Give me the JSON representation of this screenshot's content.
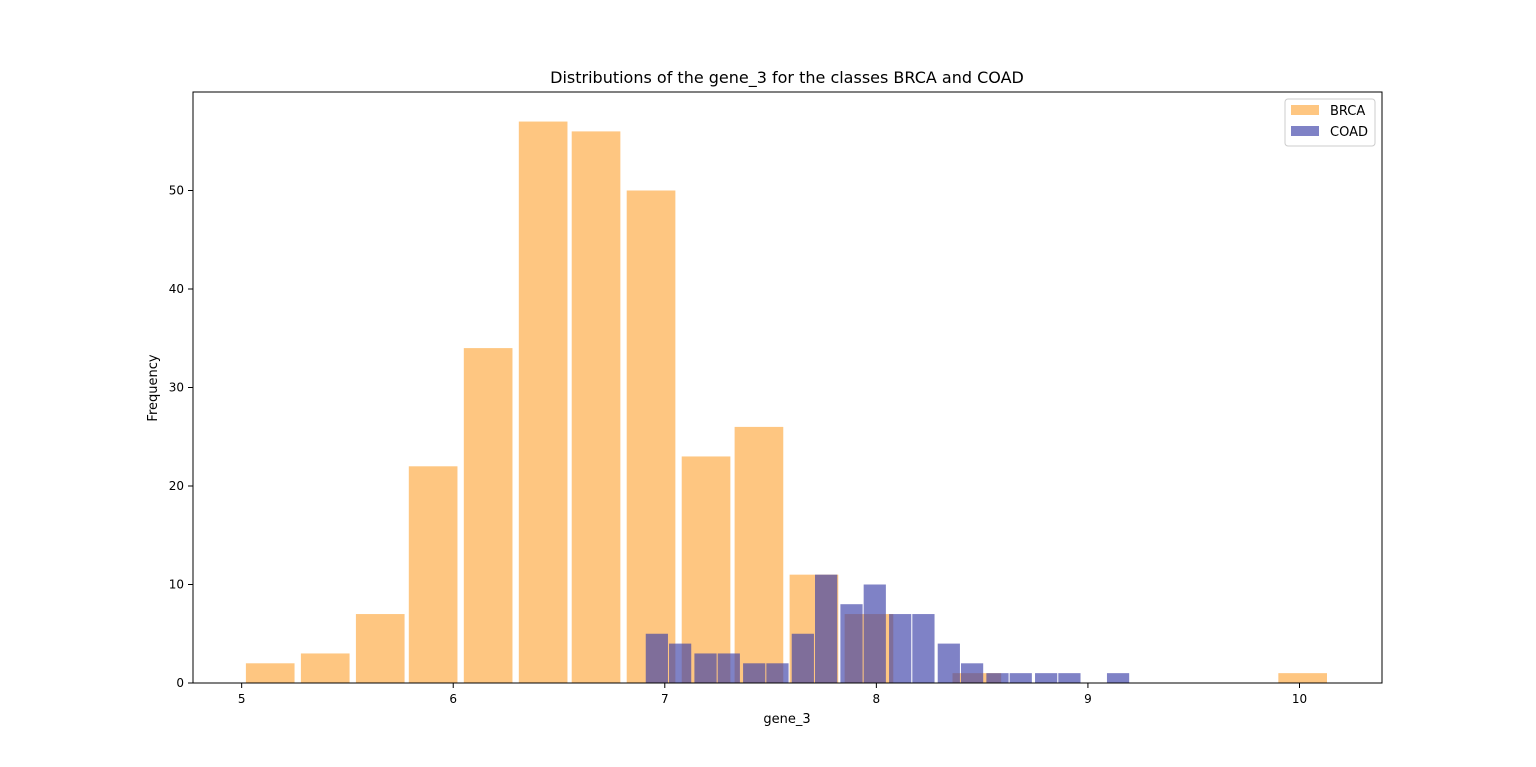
{
  "chart_data": {
    "type": "bar",
    "title": "Distributions of the gene_3 for the classes BRCA and COAD",
    "xlabel": "gene_3",
    "ylabel": "Frequency",
    "xlim": [
      4.77,
      10.39
    ],
    "ylim": [
      0,
      60
    ],
    "xticks": [
      5,
      6,
      7,
      8,
      9,
      10
    ],
    "yticks": [
      0,
      10,
      20,
      30,
      40,
      50
    ],
    "grid": false,
    "legend_position": "top-right",
    "series": [
      {
        "name": "BRCA",
        "color": "#fdae4b",
        "opacity": 0.7,
        "bin_width": 0.23,
        "bins": [
          {
            "x0": 5.02,
            "value": 2
          },
          {
            "x0": 5.28,
            "value": 3
          },
          {
            "x0": 5.54,
            "value": 7
          },
          {
            "x0": 5.79,
            "value": 22
          },
          {
            "x0": 6.05,
            "value": 34
          },
          {
            "x0": 6.31,
            "value": 57
          },
          {
            "x0": 6.56,
            "value": 56
          },
          {
            "x0": 6.82,
            "value": 50
          },
          {
            "x0": 7.08,
            "value": 23
          },
          {
            "x0": 7.33,
            "value": 26
          },
          {
            "x0": 7.59,
            "value": 11
          },
          {
            "x0": 7.85,
            "value": 7
          },
          {
            "x0": 8.36,
            "value": 1
          },
          {
            "x0": 9.9,
            "value": 1
          }
        ]
      },
      {
        "name": "COAD",
        "color": "#3b3fa8",
        "opacity": 0.65,
        "bin_width": 0.105,
        "bins": [
          {
            "x0": 6.91,
            "value": 5
          },
          {
            "x0": 7.02,
            "value": 4
          },
          {
            "x0": 7.14,
            "value": 3
          },
          {
            "x0": 7.25,
            "value": 3
          },
          {
            "x0": 7.37,
            "value": 2
          },
          {
            "x0": 7.48,
            "value": 2
          },
          {
            "x0": 7.6,
            "value": 5
          },
          {
            "x0": 7.71,
            "value": 11
          },
          {
            "x0": 7.83,
            "value": 8
          },
          {
            "x0": 7.94,
            "value": 10
          },
          {
            "x0": 8.06,
            "value": 7
          },
          {
            "x0": 8.17,
            "value": 7
          },
          {
            "x0": 8.29,
            "value": 4
          },
          {
            "x0": 8.4,
            "value": 2
          },
          {
            "x0": 8.52,
            "value": 1
          },
          {
            "x0": 8.63,
            "value": 1
          },
          {
            "x0": 8.75,
            "value": 1
          },
          {
            "x0": 8.86,
            "value": 1
          },
          {
            "x0": 9.09,
            "value": 1
          }
        ]
      }
    ]
  }
}
